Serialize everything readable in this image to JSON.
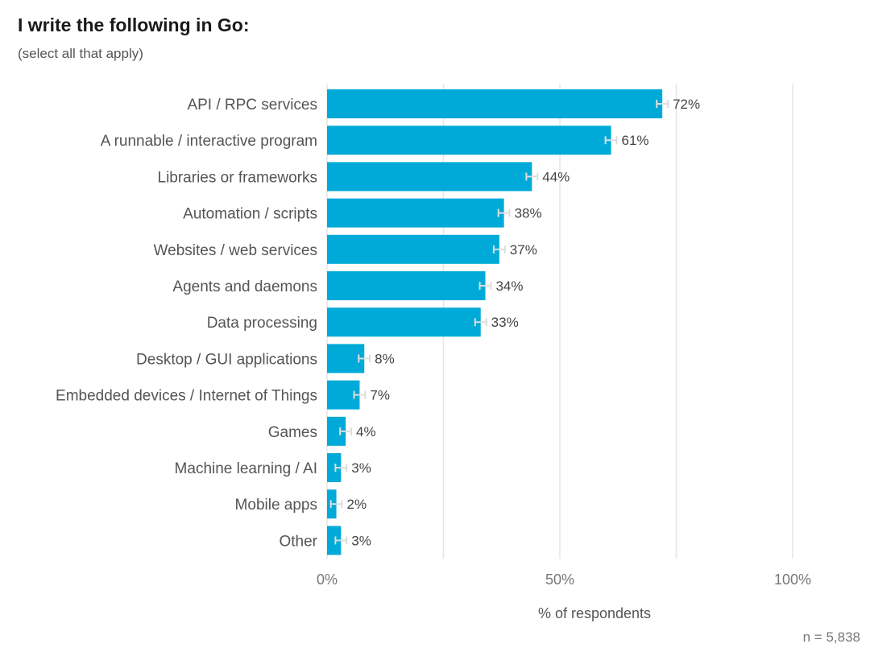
{
  "title": "I write the following in Go:",
  "subtitle": "(select all that apply)",
  "n_label": "n = 5,838",
  "colors": {
    "bar": "#00aad8",
    "grid": "#e6e6e6",
    "error_bar": "#dddddd"
  },
  "chart_data": {
    "type": "bar",
    "orientation": "horizontal",
    "categories": [
      "API / RPC services",
      "A runnable / interactive program",
      "Libraries or frameworks",
      "Automation / scripts",
      "Websites / web services",
      "Agents and daemons",
      "Data processing",
      "Desktop / GUI applications",
      "Embedded devices / Internet of Things",
      "Games",
      "Machine learning / AI",
      "Mobile apps",
      "Other"
    ],
    "values": [
      72,
      61,
      44,
      38,
      37,
      34,
      33,
      8,
      7,
      4,
      3,
      2,
      3
    ],
    "value_labels": [
      "72%",
      "61%",
      "44%",
      "38%",
      "37%",
      "34%",
      "33%",
      "8%",
      "7%",
      "4%",
      "3%",
      "2%",
      "3%"
    ],
    "error_margin": 1.2,
    "xlim": [
      0,
      100
    ],
    "xticks": [
      0,
      50,
      100
    ],
    "xtick_labels": [
      "0%",
      "50%",
      "100%"
    ],
    "gridlines": [
      0,
      25,
      50,
      75,
      100
    ],
    "xlabel": "% of respondents",
    "ylabel": ""
  }
}
